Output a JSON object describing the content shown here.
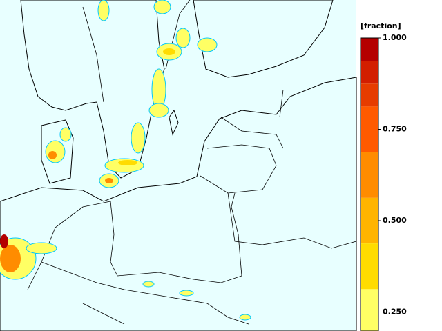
{
  "colorbar": {
    "label": "[fraction]",
    "ticks": [
      {
        "value": 1,
        "label": "1.000"
      },
      {
        "value": 0.75,
        "label": "0.750"
      },
      {
        "value": 0.5,
        "label": "0.500"
      },
      {
        "value": 0.25,
        "label": "0.250"
      }
    ],
    "bands": [
      {
        "from": 0.9375,
        "to": 1,
        "color": "#b40000"
      },
      {
        "from": 0.875,
        "to": 0.9375,
        "color": "#d21e00"
      },
      {
        "from": 0.8125,
        "to": 0.875,
        "color": "#e63c00"
      },
      {
        "from": 0.6875,
        "to": 0.8125,
        "color": "#ff5a00"
      },
      {
        "from": 0.5625,
        "to": 0.6875,
        "color": "#ff8c00"
      },
      {
        "from": 0.4375,
        "to": 0.5625,
        "color": "#ffb400"
      },
      {
        "from": 0.3125,
        "to": 0.4375,
        "color": "#ffdc00"
      },
      {
        "from": 0.1875,
        "to": 0.3125,
        "color": "#ffff64"
      }
    ]
  }
}
